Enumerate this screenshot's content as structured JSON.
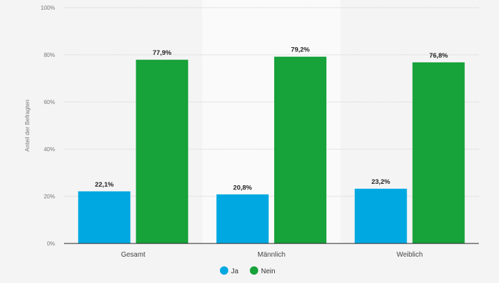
{
  "chart_data": {
    "type": "bar",
    "categories": [
      "Gesamt",
      "Männlich",
      "Weiblich"
    ],
    "series": [
      {
        "name": "Ja",
        "values": [
          22.1,
          20.8,
          23.2
        ],
        "labels": [
          "22,1%",
          "20,8%",
          "23,2%"
        ],
        "color": "#00a8e1"
      },
      {
        "name": "Nein",
        "values": [
          77.9,
          79.2,
          76.8
        ],
        "labels": [
          "77,9%",
          "79,2%",
          "76,8%"
        ],
        "color": "#17a23a"
      }
    ],
    "ylabel": "Anteil der Befragten",
    "xlabel": "",
    "ylim": [
      0,
      100
    ],
    "yticks": [
      "0%",
      "20%",
      "40%",
      "60%",
      "80%",
      "100%"
    ],
    "grid": true,
    "legend": "bottom-center",
    "highlighted_category": "Männlich"
  }
}
